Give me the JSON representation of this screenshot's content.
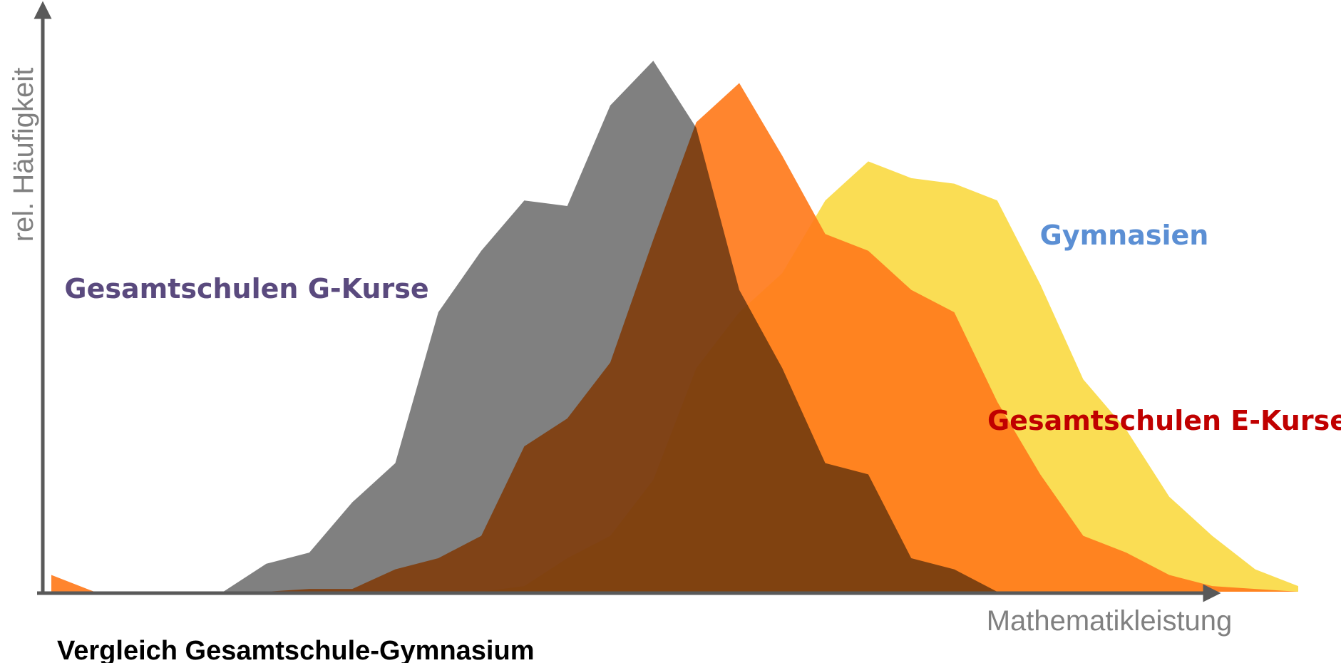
{
  "chart_data": {
    "type": "area",
    "title": "Vergleich Gesamtschule-Gymnasium",
    "x_label": "Mathematikleistung",
    "y_label": "rel. Häufigkeit",
    "ylim": [
      0,
      100
    ],
    "series": [
      {
        "name": "Gesamtschulen G-Kurse",
        "color": "#808080",
        "label_color": "#5a4a7e",
        "values": [
          0,
          0,
          0,
          0,
          0,
          5,
          7,
          16,
          23,
          50,
          61,
          70,
          69,
          87,
          95,
          83,
          54,
          40,
          23,
          21,
          6,
          4,
          0,
          0,
          0,
          0,
          0,
          0,
          0,
          0
        ]
      },
      {
        "name": "Gesamtschulen E-Kurse",
        "color": "#ff7b1c",
        "label_color": "#c00000",
        "values": [
          3,
          0,
          0,
          0,
          0,
          0,
          0.5,
          0.5,
          4,
          6,
          10,
          26,
          31,
          41,
          63,
          84,
          91,
          78,
          64,
          61,
          54,
          50,
          34,
          21,
          10,
          7,
          3,
          1,
          0.5,
          0
        ]
      },
      {
        "name": "Gymnasien",
        "color": "#fadd54",
        "label_color": "#5b8fd4",
        "values": [
          0,
          0,
          0,
          0,
          0,
          0,
          0,
          0,
          0,
          0,
          0,
          1,
          6,
          10,
          20,
          40,
          50,
          57,
          70,
          77,
          74,
          73,
          70,
          55,
          38,
          29,
          17,
          10,
          4,
          1
        ]
      }
    ]
  }
}
